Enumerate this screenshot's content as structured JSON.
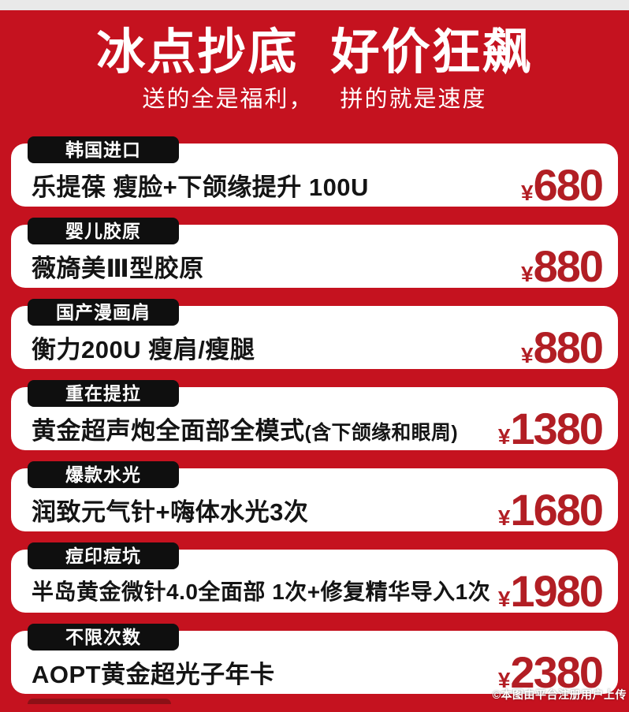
{
  "header": {
    "title": "冰点抄底 好价狂飙",
    "subtitle": "送的全是福利， 拼的就是速度"
  },
  "currency_symbol": "¥",
  "products": [
    {
      "tag": "韩国进口",
      "name": "乐提葆 瘦脸+下颌缘提升 100U",
      "name_note": "",
      "price": "680"
    },
    {
      "tag": "婴儿胶原",
      "name": "薇旖美Ⅲ型胶原",
      "name_note": "",
      "price": "880"
    },
    {
      "tag": "国产漫画肩",
      "name": "衡力200U 瘦肩/瘦腿",
      "name_note": "",
      "price": "880"
    },
    {
      "tag": "重在提拉",
      "name": "黄金超声炮全面部全模式",
      "name_note": "(含下颌缘和眼周)",
      "price": "1380"
    },
    {
      "tag": "爆款水光",
      "name": "润致元气针+嗨体水光3次",
      "name_note": "",
      "price": "1680"
    },
    {
      "tag": "痘印痘坑",
      "name": "半岛黄金微针4.0全面部 1次+修复精华导入1次",
      "name_note": "",
      "price": "1980"
    },
    {
      "tag": "不限次数",
      "name": "AOPT黄金超光子年卡",
      "name_note": "",
      "price": "2380"
    }
  ],
  "footer": {
    "watermark": "©本图由平台注册用户上传"
  },
  "colors": {
    "background": "#C5121F",
    "top_strip": "#E9E9E9",
    "card_bg": "#FFFFFF",
    "tag_bg": "#0F0F0F",
    "price_text": "#B21E24",
    "title_text": "#FFFFFF"
  }
}
